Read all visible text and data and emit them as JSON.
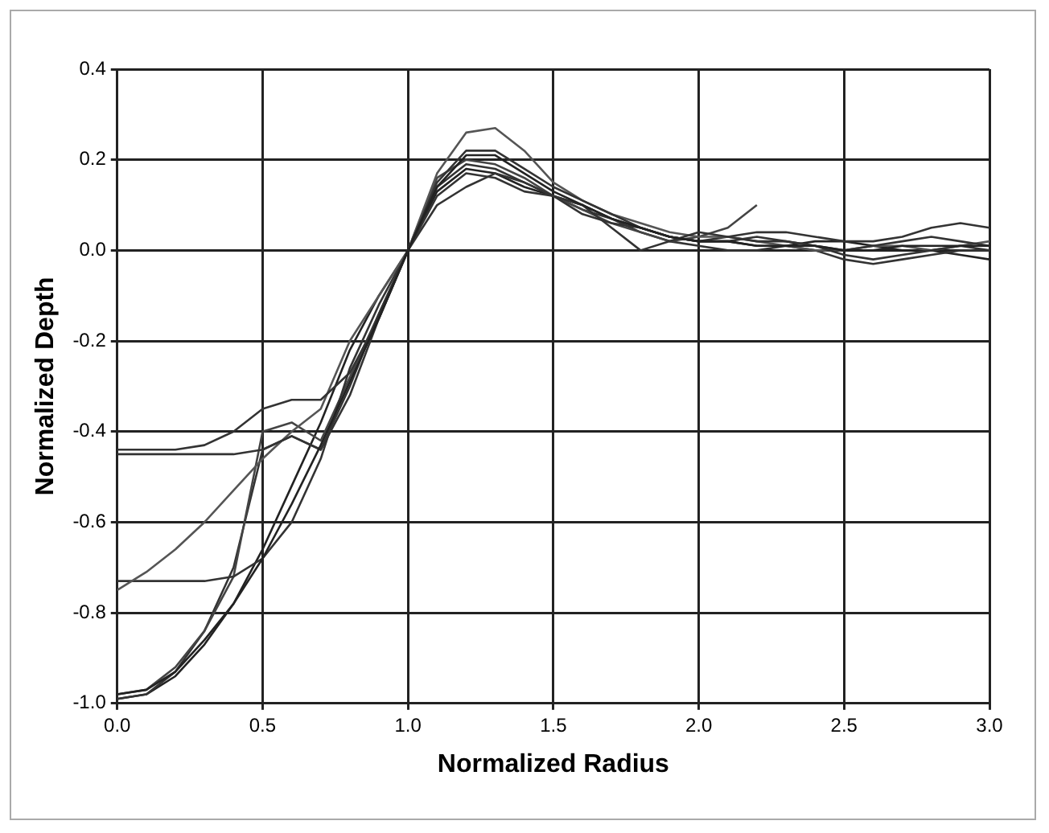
{
  "chart_data": {
    "type": "line",
    "xlabel": "Normalized Radius",
    "ylabel": "Normalized Depth",
    "x": [
      0,
      0.1,
      0.2,
      0.3,
      0.4,
      0.5,
      0.6,
      0.7,
      0.8,
      0.9,
      1.0,
      1.1,
      1.2,
      1.3,
      1.4,
      1.5,
      1.6,
      1.7,
      1.8,
      1.9,
      2.0,
      2.1,
      2.2,
      2.3,
      2.4,
      2.5,
      2.6,
      2.7,
      2.8,
      2.9,
      3.0
    ],
    "series": [
      {
        "color": "#222222",
        "values": [
          -0.98,
          -0.97,
          -0.93,
          -0.86,
          -0.78,
          -0.68,
          -0.56,
          -0.43,
          -0.29,
          -0.15,
          0,
          0.14,
          0.21,
          0.21,
          0.17,
          0.13,
          0.1,
          0.07,
          0.05,
          0.03,
          0.02,
          0.02,
          0.01,
          0.01,
          0.01,
          0.0,
          0.0,
          0.01,
          0.01,
          0.01,
          0.01
        ]
      },
      {
        "color": "#333333",
        "values": [
          -0.44,
          -0.44,
          -0.44,
          -0.43,
          -0.4,
          -0.35,
          -0.33,
          -0.33,
          -0.27,
          -0.15,
          0,
          0.15,
          0.22,
          0.22,
          0.18,
          0.14,
          0.11,
          0.08,
          0.05,
          0.03,
          0.02,
          0.02,
          0.03,
          0.02,
          0.01,
          0.0,
          0.01,
          0.02,
          0.03,
          0.02,
          0.01
        ]
      },
      {
        "color": "#333333",
        "values": [
          -0.45,
          -0.45,
          -0.45,
          -0.45,
          -0.45,
          -0.44,
          -0.41,
          -0.44,
          -0.3,
          -0.14,
          0,
          0.12,
          0.17,
          0.16,
          0.13,
          0.12,
          0.1,
          0.05,
          0.0,
          0.02,
          0.04,
          0.03,
          0.02,
          0.02,
          0.01,
          -0.01,
          -0.02,
          -0.01,
          0.0,
          0.01,
          0.0
        ]
      },
      {
        "color": "#555555",
        "values": [
          -0.75,
          -0.71,
          -0.66,
          -0.6,
          -0.53,
          -0.46,
          -0.4,
          -0.35,
          -0.2,
          -0.1,
          0,
          0.17,
          0.26,
          0.27,
          0.22,
          0.15,
          0.11,
          0.08,
          0.06,
          0.04,
          0.03,
          0.03,
          0.02,
          0.01,
          0.0,
          0.0,
          0.01,
          0.01,
          0.0,
          0.01,
          0.02
        ]
      },
      {
        "color": "#333333",
        "values": [
          -0.73,
          -0.73,
          -0.73,
          -0.73,
          -0.72,
          -0.68,
          -0.6,
          -0.46,
          -0.26,
          -0.12,
          0,
          0.1,
          0.14,
          0.17,
          0.15,
          0.12,
          0.08,
          0.06,
          0.05,
          0.03,
          0.02,
          0.03,
          0.04,
          0.04,
          0.03,
          0.02,
          0.02,
          0.03,
          0.05,
          0.06,
          0.05
        ]
      },
      {
        "color": "#444444",
        "values": [
          -0.98,
          -0.97,
          -0.92,
          -0.84,
          -0.72,
          -0.4,
          -0.38,
          -0.42,
          -0.28,
          -0.14,
          0,
          0.16,
          0.2,
          0.19,
          0.16,
          0.12,
          0.09,
          0.06,
          0.04,
          0.02,
          0.03,
          0.05,
          0.1,
          null,
          null,
          null,
          null,
          null,
          null,
          null,
          null
        ]
      },
      {
        "color": "#333333",
        "values": [
          -0.99,
          -0.98,
          -0.93,
          -0.84,
          -0.7,
          -0.44,
          -0.41,
          -0.44,
          -0.32,
          -0.15,
          0,
          0.14,
          0.19,
          0.18,
          0.15,
          0.12,
          0.09,
          0.07,
          0.04,
          0.02,
          0.01,
          0.0,
          0.0,
          0.01,
          0.0,
          -0.02,
          -0.03,
          -0.02,
          -0.01,
          0.0,
          0.0
        ]
      },
      {
        "color": "#222222",
        "values": [
          -0.99,
          -0.98,
          -0.94,
          -0.87,
          -0.78,
          -0.66,
          -0.52,
          -0.38,
          -0.22,
          -0.1,
          0,
          0.13,
          0.18,
          0.17,
          0.14,
          0.12,
          0.1,
          0.07,
          0.05,
          0.03,
          0.02,
          0.02,
          0.01,
          0.01,
          0.02,
          0.02,
          0.01,
          0.0,
          0.0,
          -0.01,
          -0.02
        ]
      }
    ],
    "xlim": [
      0,
      3
    ],
    "xticks": [
      {
        "value": 0,
        "label": "0.0"
      },
      {
        "value": 0.5,
        "label": "0.5"
      },
      {
        "value": 1,
        "label": "1.0"
      },
      {
        "value": 1.5,
        "label": "1.5"
      },
      {
        "value": 2,
        "label": "2.0"
      },
      {
        "value": 2.5,
        "label": "2.5"
      },
      {
        "value": 3,
        "label": "3.0"
      }
    ],
    "ylim": [
      -1,
      0.4
    ],
    "yticks": [
      {
        "value": -1,
        "label": "-1.0"
      },
      {
        "value": -0.8,
        "label": "-0.8"
      },
      {
        "value": -0.6,
        "label": "-0.6"
      },
      {
        "value": -0.4,
        "label": "-0.4"
      },
      {
        "value": -0.2,
        "label": "-0.2"
      },
      {
        "value": 0,
        "label": "0.0"
      },
      {
        "value": 0.2,
        "label": "0.2"
      },
      {
        "value": 0.4,
        "label": "0.4"
      }
    ],
    "grid": true,
    "legend": false,
    "marker": "none",
    "line_style": "solid"
  }
}
